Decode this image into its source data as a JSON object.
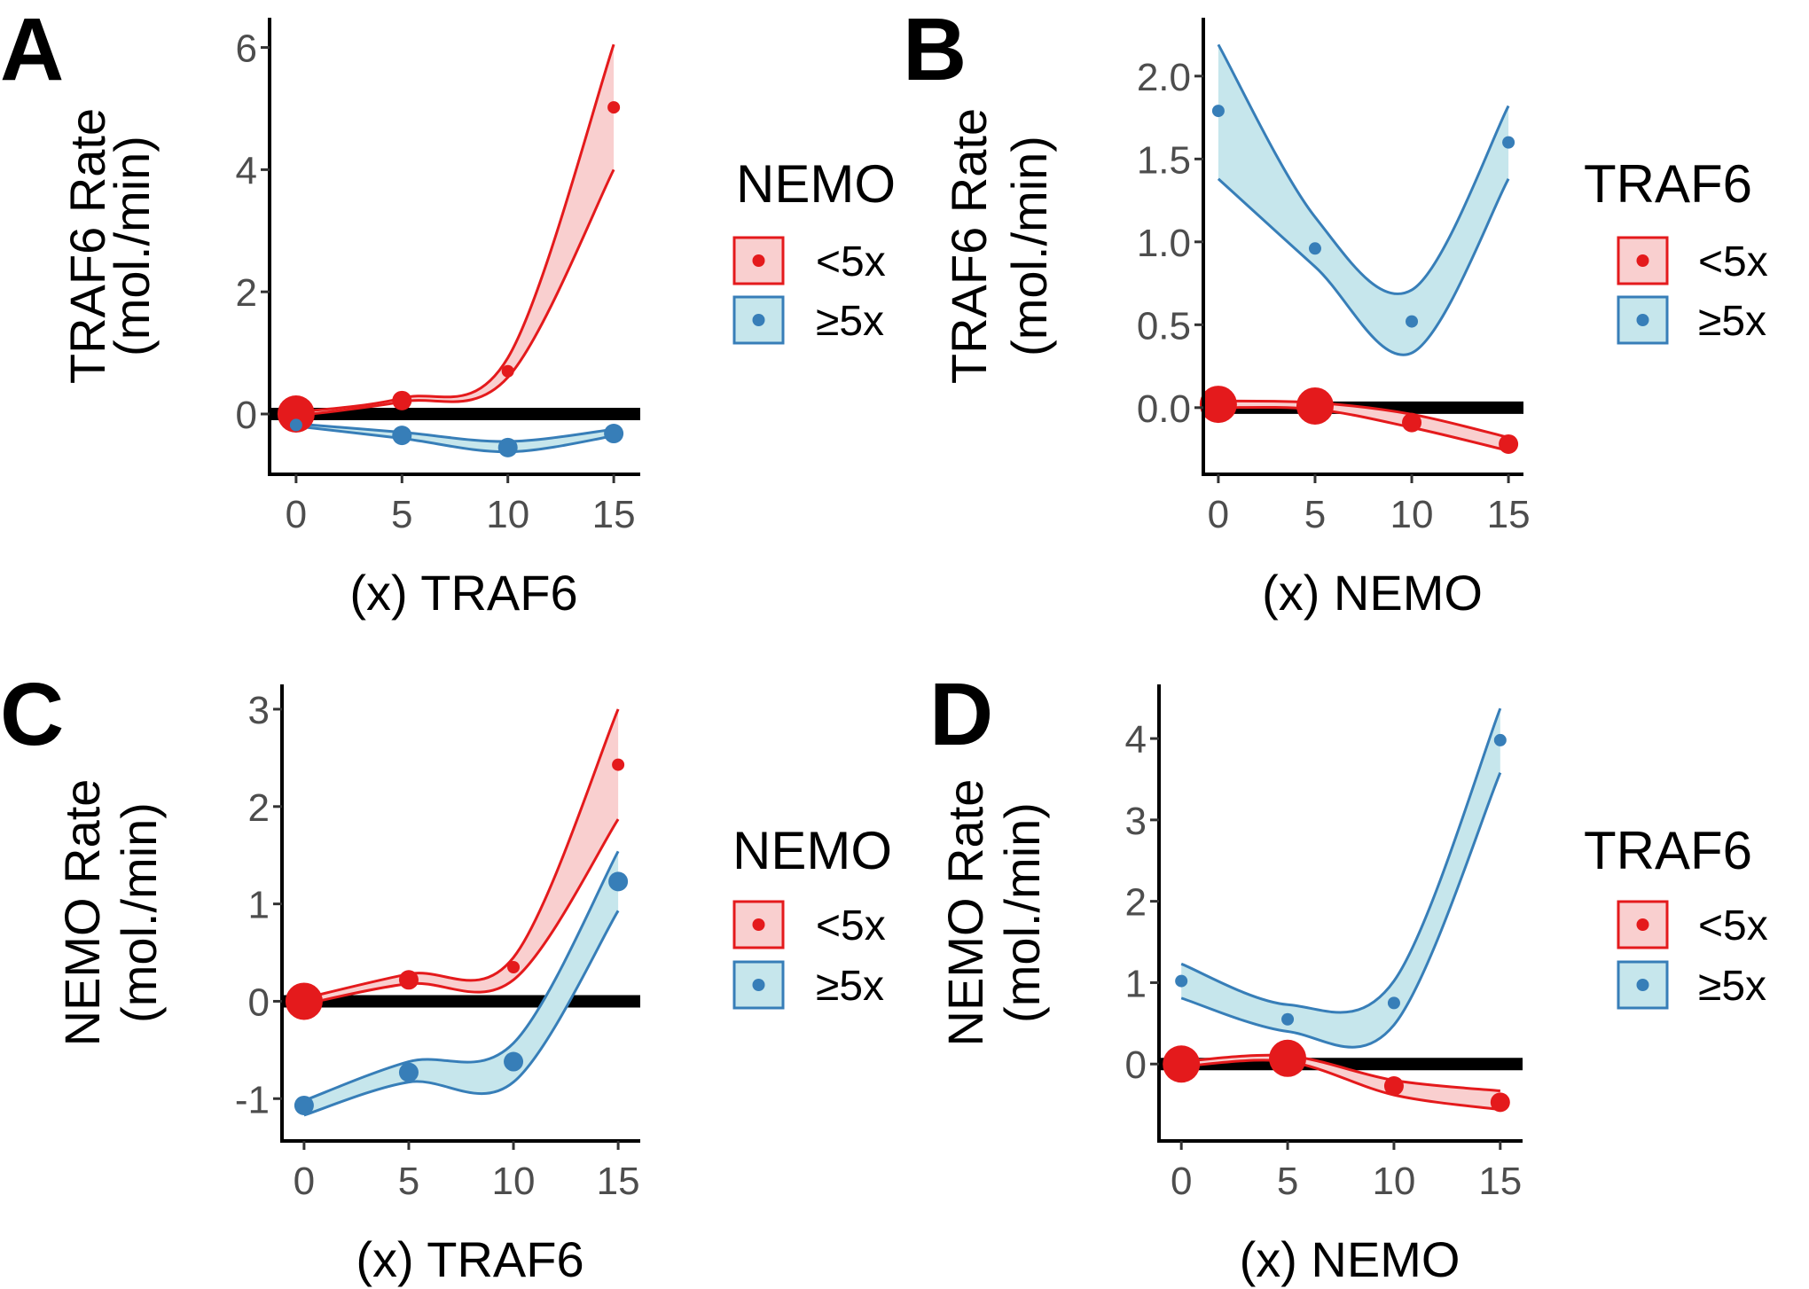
{
  "colors": {
    "low": "#E41A1C",
    "low_fill": "#F9CFCF",
    "high": "#377EB8",
    "high_fill": "#C6E6EC",
    "zero_line": "#000000"
  },
  "chart_data": [
    {
      "panel": "A",
      "type": "line",
      "xlabel": "(x) TRAF6",
      "ylabel": [
        "TRAF6 Rate",
        "(mol./min)"
      ],
      "xlim": [
        -1,
        16
      ],
      "ylim": [
        -0.9,
        6.4
      ],
      "xticks": [
        0,
        5,
        10,
        15
      ],
      "yticks": [
        0,
        2,
        4,
        6
      ],
      "legend": {
        "title": "NEMO",
        "entries": [
          "<5x",
          "≥5x"
        ]
      },
      "series": [
        {
          "name": "<5x",
          "color_key": "low",
          "x": [
            0,
            5,
            10,
            15
          ],
          "y": [
            0.0,
            0.22,
            0.7,
            5.02
          ],
          "lower": [
            -0.03,
            0.2,
            0.6,
            4.0
          ],
          "upper": [
            0.03,
            0.26,
            0.92,
            6.05
          ],
          "size": [
            3,
            2,
            1,
            1
          ]
        },
        {
          "name": "≥5x",
          "color_key": "high",
          "x": [
            0,
            5,
            10,
            15
          ],
          "y": [
            -0.18,
            -0.35,
            -0.55,
            -0.32
          ],
          "lower": [
            -0.2,
            -0.4,
            -0.62,
            -0.36
          ],
          "upper": [
            -0.16,
            -0.3,
            -0.45,
            -0.25
          ],
          "size": [
            1,
            2,
            2,
            2
          ]
        }
      ]
    },
    {
      "panel": "B",
      "type": "line",
      "xlabel": "(x) NEMO",
      "ylabel": [
        "TRAF6 Rate",
        "(mol./min)"
      ],
      "xlim": [
        -0.5,
        15.5
      ],
      "ylim": [
        -0.37,
        2.32
      ],
      "xticks": [
        0,
        5,
        10,
        15
      ],
      "yticks": [
        0.0,
        0.5,
        1.0,
        1.5,
        2.0
      ],
      "yticklabels": [
        "0.0",
        "0.5",
        "1.0",
        "1.5",
        "2.0"
      ],
      "legend": {
        "title": "TRAF6",
        "entries": [
          "<5x",
          "≥5x"
        ]
      },
      "series": [
        {
          "name": "<5x",
          "color_key": "low",
          "x": [
            0,
            5,
            10,
            15
          ],
          "y": [
            0.02,
            0.01,
            -0.09,
            -0.22
          ],
          "lower": [
            0.0,
            -0.01,
            -0.12,
            -0.26
          ],
          "upper": [
            0.04,
            0.03,
            -0.04,
            -0.18
          ],
          "size": [
            3,
            3,
            2,
            2
          ]
        },
        {
          "name": "≥5x",
          "color_key": "high",
          "x": [
            0,
            5,
            10,
            15
          ],
          "y": [
            1.79,
            0.96,
            0.52,
            1.6
          ],
          "lower": [
            1.38,
            0.85,
            0.33,
            1.38
          ],
          "upper": [
            2.19,
            1.15,
            0.71,
            1.82
          ],
          "size": [
            1,
            1,
            1,
            1
          ]
        }
      ]
    },
    {
      "panel": "C",
      "type": "line",
      "xlabel": "(x) TRAF6",
      "ylabel": [
        "NEMO Rate",
        "(mol./min)"
      ],
      "xlim": [
        -0.8,
        15.8
      ],
      "ylim": [
        -1.38,
        3.2
      ],
      "xticks": [
        0,
        5,
        10,
        15
      ],
      "yticks": [
        -1,
        0,
        1,
        2,
        3
      ],
      "legend": {
        "title": "NEMO",
        "entries": [
          "<5x",
          "≥5x"
        ]
      },
      "series": [
        {
          "name": "<5x",
          "color_key": "low",
          "x": [
            0,
            5,
            10,
            15
          ],
          "y": [
            0.0,
            0.22,
            0.35,
            2.43
          ],
          "lower": [
            -0.03,
            0.18,
            0.22,
            1.87
          ],
          "upper": [
            0.03,
            0.28,
            0.45,
            3.0
          ],
          "size": [
            3,
            2,
            1,
            1
          ]
        },
        {
          "name": "≥5x",
          "color_key": "high",
          "x": [
            0,
            5,
            10,
            15
          ],
          "y": [
            -1.07,
            -0.73,
            -0.62,
            1.23
          ],
          "lower": [
            -1.17,
            -0.83,
            -0.83,
            0.93
          ],
          "upper": [
            -1.02,
            -0.62,
            -0.43,
            1.54
          ],
          "size": [
            2,
            2,
            2,
            2
          ]
        }
      ]
    },
    {
      "panel": "D",
      "type": "line",
      "xlabel": "(x) NEMO",
      "ylabel": [
        "NEMO Rate",
        "(mol./min)"
      ],
      "xlim": [
        -0.8,
        15.8
      ],
      "ylim": [
        -0.88,
        4.6
      ],
      "xticks": [
        0,
        5,
        10,
        15
      ],
      "yticks": [
        0,
        1,
        2,
        3,
        4
      ],
      "legend": {
        "title": "TRAF6",
        "entries": [
          "<5x",
          "≥5x"
        ]
      },
      "series": [
        {
          "name": "<5x",
          "color_key": "low",
          "x": [
            0,
            5,
            10,
            15
          ],
          "y": [
            0.0,
            0.07,
            -0.27,
            -0.47
          ],
          "lower": [
            -0.03,
            0.03,
            -0.38,
            -0.56
          ],
          "upper": [
            0.03,
            0.1,
            -0.2,
            -0.33
          ],
          "size": [
            3,
            3,
            2,
            2
          ]
        },
        {
          "name": "≥5x",
          "color_key": "high",
          "x": [
            0,
            5,
            10,
            15
          ],
          "y": [
            1.02,
            0.55,
            0.75,
            3.98
          ],
          "lower": [
            0.81,
            0.4,
            0.48,
            3.58
          ],
          "upper": [
            1.23,
            0.73,
            1.02,
            4.37
          ],
          "size": [
            1,
            1,
            1,
            1
          ]
        }
      ]
    }
  ]
}
